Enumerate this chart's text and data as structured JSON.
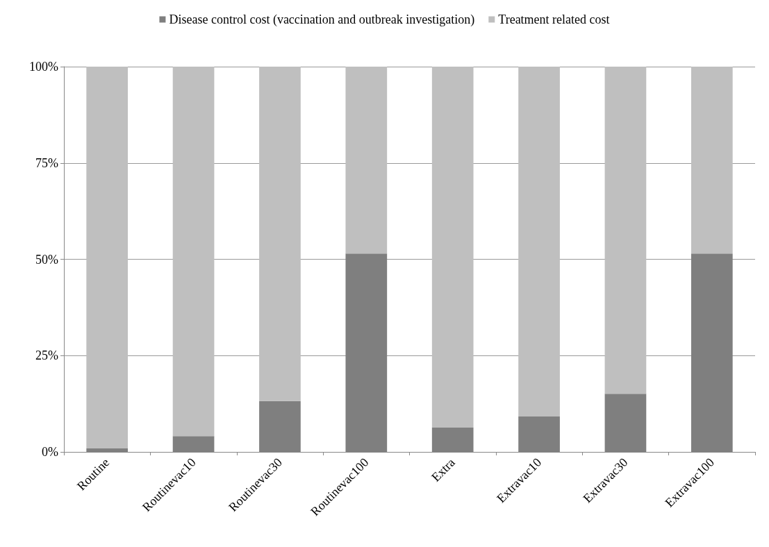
{
  "chart_data": {
    "type": "bar",
    "stacked": true,
    "categories": [
      "Routine",
      "Routinevac10",
      "Routinevac30",
      "Routinevac100",
      "Extra",
      "Extravac10",
      "Extravac30",
      "Extravac100"
    ],
    "series": [
      {
        "name": "Disease control cost (vaccination and outbreak investigation)",
        "color": "#7f7f7f",
        "values": [
          0.9,
          4.1,
          13.2,
          51.5,
          6.3,
          9.2,
          15.1,
          51.5
        ]
      },
      {
        "name": "Treatment related cost",
        "color": "#bfbfbf",
        "values": [
          99.1,
          95.9,
          86.8,
          48.5,
          93.7,
          90.8,
          84.9,
          48.5
        ]
      }
    ],
    "ylim": [
      0,
      100
    ],
    "yticks": [
      {
        "value": 0,
        "label": "0%"
      },
      {
        "value": 25,
        "label": "25%"
      },
      {
        "value": 50,
        "label": "50%"
      },
      {
        "value": 75,
        "label": "75%"
      },
      {
        "value": 100,
        "label": "100%"
      }
    ],
    "grid": "y",
    "legend": "top"
  }
}
